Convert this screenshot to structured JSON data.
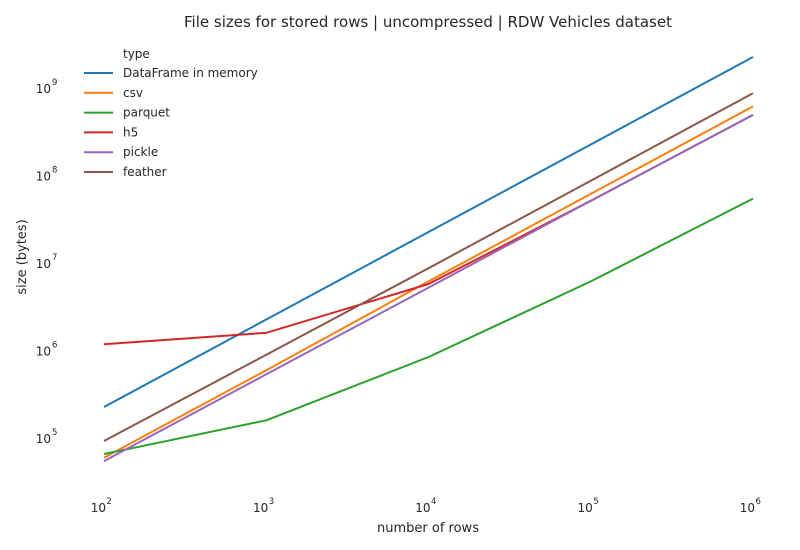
{
  "chart_data": {
    "type": "line",
    "title": "File sizes for stored rows | uncompressed | RDW Vehicles dataset",
    "xlabel": "number of rows",
    "ylabel": "size (bytes)",
    "xscale": "log",
    "yscale": "log",
    "xlim": [
      100,
      1000000
    ],
    "ylim": [
      25000,
      4000000000
    ],
    "grid": false,
    "legend": {
      "title": "type",
      "placement": "top-left"
    },
    "x": [
      100,
      1000,
      10000,
      100000,
      1000000
    ],
    "x_ticks": [
      {
        "base": "10",
        "exp": "2",
        "value": 100
      },
      {
        "base": "10",
        "exp": "3",
        "value": 1000
      },
      {
        "base": "10",
        "exp": "4",
        "value": 10000
      },
      {
        "base": "10",
        "exp": "5",
        "value": 100000
      },
      {
        "base": "10",
        "exp": "6",
        "value": 1000000
      }
    ],
    "y_ticks": [
      {
        "base": "10",
        "exp": "5",
        "value": 100000
      },
      {
        "base": "10",
        "exp": "6",
        "value": 1000000
      },
      {
        "base": "10",
        "exp": "7",
        "value": 10000000
      },
      {
        "base": "10",
        "exp": "8",
        "value": 100000000
      },
      {
        "base": "10",
        "exp": "9",
        "value": 1000000000
      }
    ],
    "series": [
      {
        "name": "DataFrame in memory",
        "color": "#1f77b4",
        "values": [
          220000,
          2200000,
          22000000,
          220000000,
          2200000000
        ]
      },
      {
        "name": "csv",
        "color": "#ff7f0e",
        "values": [
          58000,
          580000,
          6000000,
          60000000,
          600000000
        ]
      },
      {
        "name": "parquet",
        "color": "#2ca02c",
        "values": [
          64000,
          155000,
          820000,
          6000000,
          53000000
        ]
      },
      {
        "name": "h5",
        "color": "#d62728",
        "values": [
          1150000,
          1550000,
          5600000,
          50000000,
          480000000
        ]
      },
      {
        "name": "pickle",
        "color": "#9467bd",
        "values": [
          53000,
          520000,
          5100000,
          50000000,
          480000000
        ]
      },
      {
        "name": "feather",
        "color": "#8c564b",
        "values": [
          90000,
          870000,
          8500000,
          85000000,
          850000000
        ]
      }
    ]
  }
}
